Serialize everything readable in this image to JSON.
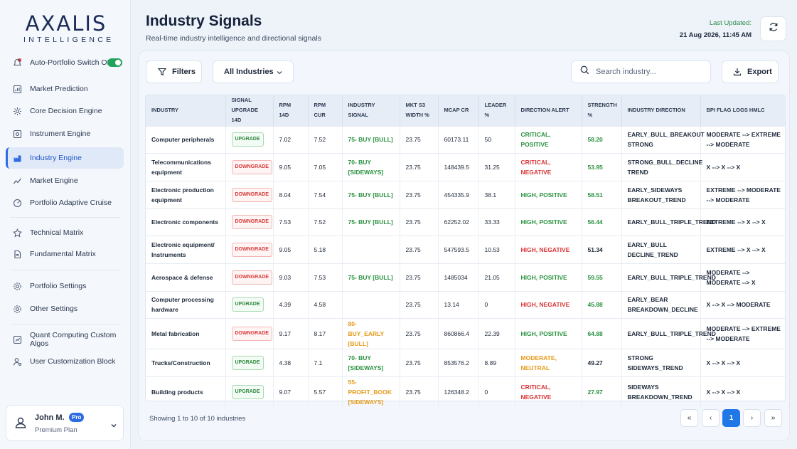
{
  "brand": {
    "name": "AXALIS",
    "sub": "INTELLIGENCE"
  },
  "sidebar": {
    "items": [
      {
        "label": "Auto-Portfolio Switch ON",
        "icon": "alert-toggle-icon"
      },
      {
        "label": "Market Prediction",
        "icon": "prediction-icon"
      },
      {
        "label": "Core Decision Engine",
        "icon": "gear-icon"
      },
      {
        "label": "Instrument Engine",
        "icon": "instrument-icon"
      },
      {
        "label": "Industry Engine",
        "icon": "industry-icon",
        "active": true
      },
      {
        "label": "Market Engine",
        "icon": "trend-icon"
      },
      {
        "label": "Portfolio Adaptive Cruise",
        "icon": "cruise-icon"
      },
      {
        "label": "Technical Matrix",
        "icon": "star-icon"
      },
      {
        "label": "Fundamental Matrix",
        "icon": "document-icon"
      },
      {
        "label": "Portfolio Settings",
        "icon": "settings-icon"
      },
      {
        "label": "Other Settings",
        "icon": "settings-icon"
      },
      {
        "label": "Quant Computing Custom Algos",
        "icon": "algo-icon"
      },
      {
        "label": "User Customization Block",
        "icon": "user-gear-icon"
      }
    ],
    "auto_switch_on": true
  },
  "user": {
    "name": "John M.",
    "badge": "Pro",
    "plan": "Premium Plan"
  },
  "header": {
    "title": "Industry Signals",
    "subtitle": "Real-time industry intelligence and directional signals",
    "last_updated_label": "Last Updated:",
    "last_updated_value": "21 Aug 2026, 11:45 AM"
  },
  "toolbar": {
    "filters": "Filters",
    "industries_select": "All Industries",
    "search_placeholder": "Search industry...",
    "export": "Export"
  },
  "table": {
    "headers": [
      "INDUSTRY",
      "SIGNAL UPGRADE 14D",
      "RPM 14D",
      "RPM CUR",
      "INDUSTRY SIGNAL",
      "MKT S3 WIDTH %",
      "MCAP CR",
      "LEADER %",
      "DIRECTION ALERT",
      "STRENGTH %",
      "INDUSTRY DIRECTION",
      "BPI FLAG LOGS HMLC"
    ],
    "rows": [
      {
        "industry": "Computer peripherals",
        "signal": "UPGRADE",
        "rpm14": "7.02",
        "rpmcur": "7.52",
        "ind_signal": "75- BUY [BULL]",
        "ind_signal_color": "green",
        "width": "23.75",
        "mcap": "60173.11",
        "leader": "50",
        "alert": "CRITICAL, POSITIVE",
        "alert_color": "green",
        "strength": "58.20",
        "strength_color": "green",
        "direction": "EARLY_BULL_BREAKOUT STRONG",
        "bpi": "MODERATE --> EXTREME --> MODERATE"
      },
      {
        "industry": "Telecommunications equipment",
        "signal": "DOWNGRADE",
        "rpm14": "9.05",
        "rpmcur": "7.05",
        "ind_signal": "70- BUY [SIDEWAYS]",
        "ind_signal_color": "green",
        "width": "23.75",
        "mcap": "148439.5",
        "leader": "31.25",
        "alert": "CRITICAL, NEGATIVE",
        "alert_color": "red",
        "strength": "53.95",
        "strength_color": "green",
        "direction": "STRONG_BULL_DECLINE TREND",
        "bpi": "X --> X --> X"
      },
      {
        "industry": "Electronic production equipment",
        "signal": "DOWNGRADE",
        "rpm14": "8.04",
        "rpmcur": "7.54",
        "ind_signal": "75- BUY [BULL]",
        "ind_signal_color": "green",
        "width": "23.75",
        "mcap": "454335.9",
        "leader": "38.1",
        "alert": "HIGH, POSITIVE",
        "alert_color": "green",
        "strength": "58.51",
        "strength_color": "green",
        "direction": "EARLY_SIDEWAYS BREAKOUT_TREND",
        "bpi": "EXTREME --> MODERATE --> MODERATE"
      },
      {
        "industry": "Electronic components",
        "signal": "DOWNGRADE",
        "rpm14": "7.53",
        "rpmcur": "7.52",
        "ind_signal": "75- BUY [BULL]",
        "ind_signal_color": "green",
        "width": "23.75",
        "mcap": "62252.02",
        "leader": "33.33",
        "alert": "HIGH, POSITIVE",
        "alert_color": "green",
        "strength": "56.44",
        "strength_color": "green",
        "direction": "EARLY_BULL_TRIPLE_TREND",
        "bpi": "EXTREME --> X --> X"
      },
      {
        "industry": "Electronic equipment/ Instruments",
        "signal": "DOWNGRADE",
        "rpm14": "9.05",
        "rpmcur": "5.18",
        "ind_signal": "",
        "ind_signal_color": "green",
        "width": "23.75",
        "mcap": "547593.5",
        "leader": "10.53",
        "alert": "HIGH, NEGATIVE",
        "alert_color": "red",
        "strength": "51.34",
        "strength_color": "dark",
        "direction": "EARLY_BULL DECLINE_TREND",
        "bpi": "EXTREME --> X --> X"
      },
      {
        "industry": "Aerospace & defense",
        "signal": "DOWNGRADE",
        "rpm14": "9.03",
        "rpmcur": "7.53",
        "ind_signal": "75- BUY [BULL]",
        "ind_signal_color": "green",
        "width": "23.75",
        "mcap": "1485034",
        "leader": "21.05",
        "alert": "HIGH, POSITIVE",
        "alert_color": "green",
        "strength": "59.55",
        "strength_color": "green",
        "direction": "EARLY_BULL_TRIPLE_TREND",
        "bpi": "MODERATE --> MODERATE --> X"
      },
      {
        "industry": "Computer processing hardware",
        "signal": "UPGRADE",
        "rpm14": "4.39",
        "rpmcur": "4.58",
        "ind_signal": "",
        "ind_signal_color": "green",
        "width": "23.75",
        "mcap": "13.14",
        "leader": "0",
        "alert": "HIGH, NEGATIVE",
        "alert_color": "red",
        "strength": "45.88",
        "strength_color": "green",
        "direction": "EARLY_BEAR BREAKDOWN_DECLINE",
        "bpi": "X --> X --> MODERATE"
      },
      {
        "industry": "Metal fabrication",
        "signal": "DOWNGRADE",
        "rpm14": "9.17",
        "rpmcur": "8.17",
        "ind_signal": "80- BUY_EARLY [BULL]",
        "ind_signal_color": "orange",
        "width": "23.75",
        "mcap": "860866.4",
        "leader": "22.39",
        "alert": "HIGH, POSITIVE",
        "alert_color": "green",
        "strength": "64.88",
        "strength_color": "green",
        "direction": "EARLY_BULL_TRIPLE_TREND",
        "bpi": "MODERATE --> EXTREME --> MODERATE"
      },
      {
        "industry": "Trucks/Construction",
        "signal": "UPGRADE",
        "rpm14": "4.38",
        "rpmcur": "7.1",
        "ind_signal": "70- BUY [SIDEWAYS]",
        "ind_signal_color": "green",
        "width": "23.75",
        "mcap": "853576.2",
        "leader": "8.89",
        "alert": "MODERATE, NEUTRAL",
        "alert_color": "orange",
        "strength": "49.27",
        "strength_color": "dark",
        "direction": "STRONG SIDEWAYS_TREND",
        "bpi": "X --> X --> X"
      },
      {
        "industry": "Building products",
        "signal": "UPGRADE",
        "rpm14": "9.07",
        "rpmcur": "5.57",
        "ind_signal": "55- PROFIT_BOOK [SIDEWAYS]",
        "ind_signal_color": "orange",
        "width": "23.75",
        "mcap": "126348.2",
        "leader": "0",
        "alert": "CRITICAL, NEGATIVE",
        "alert_color": "red",
        "strength": "27.97",
        "strength_color": "green",
        "direction": "SIDEWAYS BREAKDOWN_TREND",
        "bpi": "X --> X --> X"
      }
    ]
  },
  "footer": {
    "showing": "Showing 1 to 10 of 10 industries",
    "pagination": {
      "first": "«",
      "prev": "‹",
      "current": "1",
      "next": "›",
      "last": "»"
    }
  },
  "colors": {
    "accent": "#2f6be3",
    "positive": "#2b9240",
    "negative": "#d93434",
    "neutral": "#e59a1a",
    "toggle": "#22a35a"
  }
}
